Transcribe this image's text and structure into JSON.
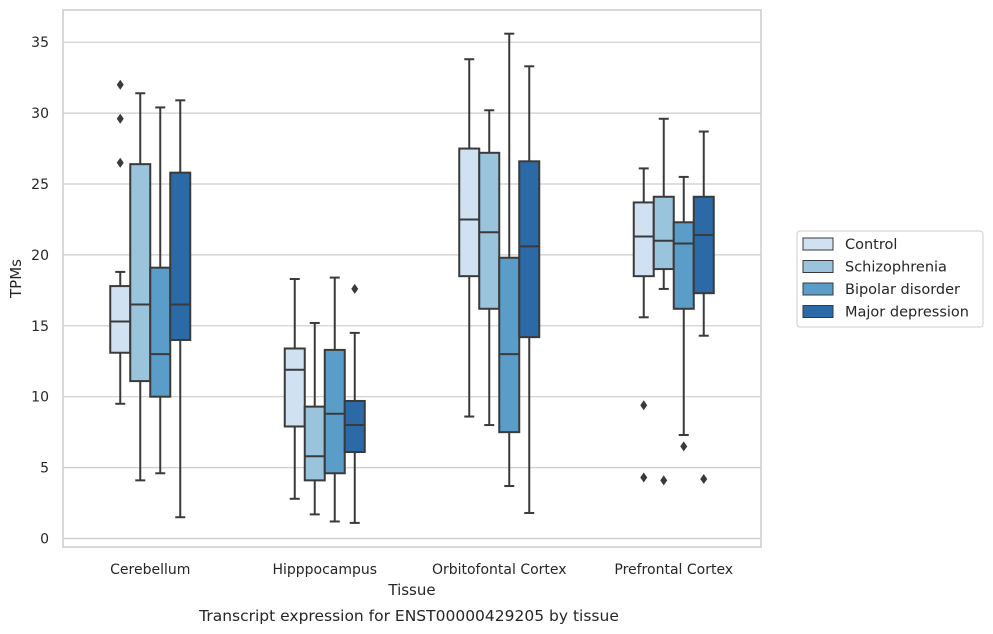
{
  "chart_data": {
    "type": "boxplot",
    "title": "",
    "caption": "Transcript expression for ENST00000429205 by tissue",
    "xlabel": "Tissue",
    "ylabel": "TPMs",
    "ylim": [
      -0.6,
      37.3
    ],
    "yticks": [
      0,
      5,
      10,
      15,
      20,
      25,
      30,
      35
    ],
    "grid": "horizontal",
    "legend_position": "right",
    "categories": [
      "Cerebellum",
      "Hipppocampus",
      "Orbitofontal Cortex",
      "Prefrontal Cortex"
    ],
    "series": [
      {
        "name": "Control",
        "color": "#d0e1f1",
        "boxes": [
          {
            "min": 9.5,
            "q1": 13.1,
            "median": 15.3,
            "q3": 17.8,
            "max": 18.8,
            "outliers": [
              26.5,
              29.6,
              32.0
            ]
          },
          {
            "min": 2.8,
            "q1": 7.9,
            "median": 11.9,
            "q3": 13.4,
            "max": 18.3,
            "outliers": []
          },
          {
            "min": 8.6,
            "q1": 18.5,
            "median": 22.5,
            "q3": 27.5,
            "max": 33.8,
            "outliers": []
          },
          {
            "min": 15.6,
            "q1": 18.5,
            "median": 21.3,
            "q3": 23.7,
            "max": 26.1,
            "outliers": [
              4.3,
              9.4
            ]
          }
        ]
      },
      {
        "name": "Schizophrenia",
        "color": "#9ac3dc",
        "boxes": [
          {
            "min": 4.1,
            "q1": 11.1,
            "median": 16.5,
            "q3": 26.4,
            "max": 31.4,
            "outliers": []
          },
          {
            "min": 1.7,
            "q1": 4.1,
            "median": 5.8,
            "q3": 9.3,
            "max": 15.2,
            "outliers": []
          },
          {
            "min": 8.0,
            "q1": 16.2,
            "median": 21.6,
            "q3": 27.2,
            "max": 30.2,
            "outliers": []
          },
          {
            "min": 17.6,
            "q1": 19.0,
            "median": 21.0,
            "q3": 24.1,
            "max": 29.6,
            "outliers": [
              4.1
            ]
          }
        ]
      },
      {
        "name": "Bipolar disorder",
        "color": "#5a9dc8",
        "boxes": [
          {
            "min": 4.6,
            "q1": 10.0,
            "median": 13.0,
            "q3": 19.1,
            "max": 30.4,
            "outliers": []
          },
          {
            "min": 1.2,
            "q1": 4.6,
            "median": 8.8,
            "q3": 13.3,
            "max": 18.4,
            "outliers": []
          },
          {
            "min": 3.7,
            "q1": 7.5,
            "median": 13.0,
            "q3": 19.8,
            "max": 35.6,
            "outliers": []
          },
          {
            "min": 7.3,
            "q1": 16.2,
            "median": 20.8,
            "q3": 22.3,
            "max": 25.5,
            "outliers": [
              6.5
            ]
          }
        ]
      },
      {
        "name": "Major depression",
        "color": "#2b6aa6",
        "boxes": [
          {
            "min": 1.5,
            "q1": 14.0,
            "median": 16.5,
            "q3": 25.8,
            "max": 30.9,
            "outliers": []
          },
          {
            "min": 1.1,
            "q1": 6.1,
            "median": 8.0,
            "q3": 9.7,
            "max": 14.5,
            "outliers": [
              17.6
            ]
          },
          {
            "min": 1.8,
            "q1": 14.2,
            "median": 20.6,
            "q3": 26.6,
            "max": 33.3,
            "outliers": []
          },
          {
            "min": 14.3,
            "q1": 17.3,
            "median": 21.4,
            "q3": 24.1,
            "max": 28.7,
            "outliers": [
              4.2
            ]
          }
        ]
      }
    ]
  }
}
